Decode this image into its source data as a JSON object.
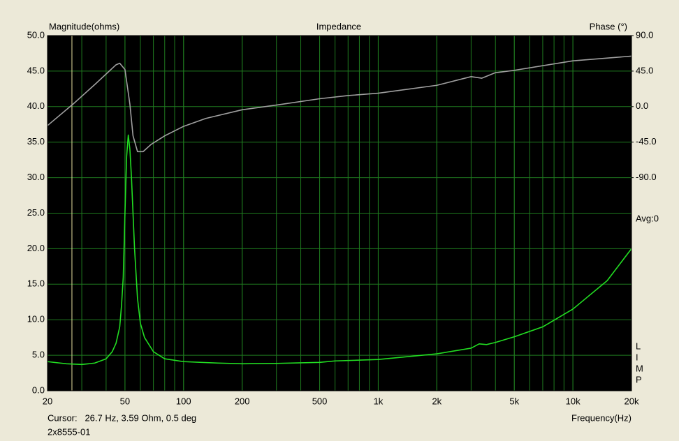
{
  "chart_data": {
    "type": "line",
    "title": "Impedance",
    "y_label": "Magnitude(ohms)",
    "y2_label": "Phase (°)",
    "x_label": "Frequency(Hz)",
    "annotations": {
      "avg": "Avg:0",
      "side_letters": [
        "L",
        "I",
        "M",
        "P"
      ],
      "cursor_text": "Cursor:   26.7 Hz, 3.59 Ohm, 0.5 deg",
      "file_name": "2x8555-01"
    },
    "cursor_x": 26.7,
    "cursor_color": "#e8e0a0",
    "xscale": "log",
    "xlim": [
      20,
      20000
    ],
    "xticks": [
      20,
      50,
      100,
      200,
      500,
      {
        "value": 1000,
        "label": "1k"
      },
      {
        "value": 2000,
        "label": "2k"
      },
      {
        "value": 5000,
        "label": "5k"
      },
      {
        "value": 10000,
        "label": "10k"
      },
      {
        "value": 20000,
        "label": "20k"
      }
    ],
    "ylim": [
      0,
      50
    ],
    "yticks": [
      {
        "value": 0,
        "label": "0.0"
      },
      {
        "value": 5,
        "label": "5.0"
      },
      {
        "value": 10,
        "label": "10.0"
      },
      {
        "value": 15,
        "label": "15.0"
      },
      {
        "value": 20,
        "label": "20.0"
      },
      {
        "value": 25,
        "label": "25.0"
      },
      {
        "value": 30,
        "label": "30.0"
      },
      {
        "value": 35,
        "label": "35.0"
      },
      {
        "value": 40,
        "label": "40.0"
      },
      {
        "value": 45,
        "label": "45.0"
      },
      {
        "value": 50,
        "label": "50.0"
      }
    ],
    "y2lim": [
      -360,
      90
    ],
    "y2ticks": [
      {
        "value": 90,
        "label": "90.0"
      },
      {
        "value": 45,
        "label": "45.0"
      },
      {
        "value": 0,
        "label": "0.0"
      },
      {
        "value": -45,
        "label": "-45.0"
      },
      {
        "value": -90,
        "label": "-90.0"
      }
    ],
    "grid": true,
    "grid_color": "#1f7a1f",
    "series": [
      {
        "color": "#22dd22",
        "x": [
          20,
          25,
          30,
          35,
          40,
          43,
          45,
          47,
          48,
          49,
          50,
          51,
          52,
          53,
          54,
          56,
          58,
          60,
          63,
          70,
          80,
          100,
          150,
          200,
          300,
          500,
          600,
          1000,
          2000,
          3000,
          3300,
          3600,
          4000,
          5000,
          7000,
          10000,
          15000,
          20000
        ],
        "values": [
          4.1,
          3.8,
          3.7,
          3.9,
          4.5,
          5.5,
          6.7,
          9,
          12,
          16,
          25,
          33,
          36,
          34,
          30,
          20,
          13,
          9.5,
          7.5,
          5.5,
          4.5,
          4.1,
          3.9,
          3.8,
          3.85,
          4.0,
          4.2,
          4.4,
          5.2,
          6.0,
          6.6,
          6.5,
          6.8,
          7.6,
          9.0,
          11.5,
          15.5,
          20.0
        ]
      },
      {
        "color": "#a0a0a0",
        "axis": "y2",
        "x": [
          20,
          27,
          35,
          45,
          47,
          50,
          53,
          55,
          58,
          62,
          68,
          80,
          100,
          130,
          200,
          300,
          500,
          700,
          1000,
          2000,
          3000,
          3400,
          4000,
          5000,
          10000,
          20000
        ],
        "values": [
          -24,
          3,
          28,
          53,
          55,
          47,
          3,
          -37,
          -57,
          -57,
          -48,
          -37,
          -25,
          -15,
          -4,
          2,
          10,
          14,
          17,
          27,
          38,
          36,
          43,
          46,
          58,
          64
        ]
      }
    ]
  }
}
